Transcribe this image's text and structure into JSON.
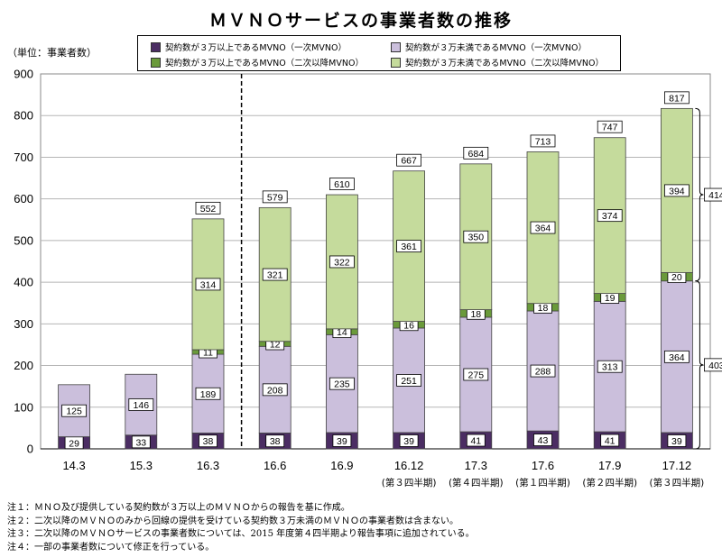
{
  "chart_data": {
    "type": "bar",
    "stacked": true,
    "title": "ＭＶＮＯサービスの事業者数の推移",
    "ylabel": "（単位：事業者数）",
    "ylim": [
      0,
      900
    ],
    "yticks": [
      0,
      100,
      200,
      300,
      400,
      500,
      600,
      700,
      800,
      900
    ],
    "categories": [
      "14.3",
      "15.3",
      "16.3",
      "16.6",
      "16.9",
      "16.12",
      "17.3",
      "17.6",
      "17.9",
      "17.12"
    ],
    "category_sublabels": [
      "",
      "",
      "",
      "",
      "",
      "(第３四半期)",
      "(第４四半期)",
      "(第１四半期)",
      "(第２四半期)",
      "(第３四半期)"
    ],
    "series": [
      {
        "name": "契約数が３万以上であるMVNO（一次MVNO）",
        "color": "#4b2d63",
        "values": [
          29,
          33,
          38,
          38,
          39,
          39,
          41,
          43,
          41,
          39
        ]
      },
      {
        "name": "契約数が３万未満であるMVNO（一次MVNO）",
        "color": "#cbbfdc",
        "values": [
          125,
          146,
          189,
          208,
          235,
          251,
          275,
          288,
          313,
          364
        ]
      },
      {
        "name": "契約数が３万以上であるMVNO（二次以降MVNO）",
        "color": "#6a9a3a",
        "values": [
          null,
          null,
          11,
          12,
          14,
          16,
          18,
          18,
          19,
          20
        ]
      },
      {
        "name": "契約数が３万未満であるMVNO（二次以降MVNO）",
        "color": "#c5db9c",
        "values": [
          null,
          null,
          314,
          321,
          322,
          361,
          350,
          364,
          374,
          394
        ]
      }
    ],
    "totals": [
      null,
      null,
      552,
      579,
      610,
      667,
      684,
      713,
      747,
      817
    ],
    "brackets": [
      {
        "label": "414",
        "from": 403,
        "to": 817
      },
      {
        "label": "403",
        "from": 0,
        "to": 403
      }
    ],
    "divider_after_category": "16.3"
  },
  "legend_labels": [
    "契約数が３万以上であるMVNO（一次MVNO）",
    "契約数が３万未満であるMVNO（一次MVNO）",
    "契約数が３万以上であるMVNO（二次以降MVNO）",
    "契約数が３万未満であるMVNO（二次以降MVNO）"
  ],
  "notes": [
    "注１：ＭＮＯ及び提供している契約数が３万以上のＭＶＮＯからの報告を基に作成。",
    "注２：二次以降のＭＶＮＯのみから回線の提供を受けている契約数３万未満のＭＶＮＯの事業者数は含まない。",
    "注３：二次以降のＭＶＮＯサービスの事業者数については、2015 年度第４四半期より報告事項に追加されている。",
    "注４：一部の事業者数について修正を行っている。"
  ]
}
